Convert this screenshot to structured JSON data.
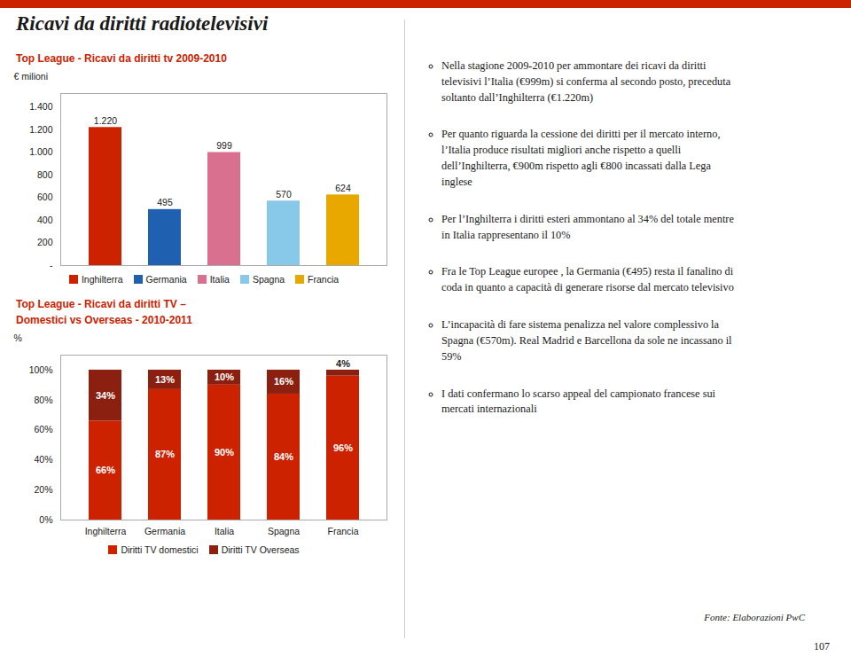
{
  "title": "Ricavi da diritti radiotelevisivi",
  "chart_data": [
    {
      "type": "bar",
      "title": "Top League - Ricavi da diritti tv 2009-2010",
      "categories": [
        "Inghilterra",
        "Germania",
        "Italia",
        "Spagna",
        "Francia"
      ],
      "values": [
        1220,
        495,
        999,
        570,
        624
      ],
      "value_labels": [
        "1.220",
        "495",
        "999",
        "570",
        "624"
      ],
      "colors": [
        "#cc2200",
        "#2060b0",
        "#d97090",
        "#88c8e8",
        "#e8a800"
      ],
      "ylabel": "€ milioni",
      "ylim": [
        0,
        1520
      ],
      "yticks": [
        {
          "value": 0,
          "label": "-"
        },
        200,
        400,
        600,
        800,
        {
          "value": 1000,
          "label": "1.000"
        },
        {
          "value": 1200,
          "label": "1.200"
        },
        {
          "value": 1400,
          "label": "1.400"
        }
      ],
      "data_labels": true,
      "tick_labels": "y",
      "legend": "bottom",
      "grid": false
    },
    {
      "type": "bar",
      "title": "Top League - Ricavi da diritti TV –\nDomestici vs Overseas - 2010-2011",
      "categories": [
        "Inghilterra",
        "Germania",
        "Italia",
        "Spagna",
        "Francia"
      ],
      "series": [
        {
          "name": "Diritti TV domestici",
          "color": "#cc2200",
          "values": [
            66,
            87,
            90,
            84,
            96
          ],
          "value_labels": [
            "66%",
            "87%",
            "90%",
            "84%",
            "96%"
          ]
        },
        {
          "name": "Diritti TV Overseas",
          "color": "#8b2010",
          "values": [
            34,
            13,
            10,
            16,
            4
          ],
          "value_labels": [
            "34%",
            "13%",
            "10%",
            "16%",
            "4%"
          ]
        }
      ],
      "stacked": true,
      "ylabel": "%",
      "ylim": [
        0,
        110
      ],
      "yticks": [
        {
          "value": 0,
          "label": "0%"
        },
        {
          "value": 20,
          "label": "20%"
        },
        {
          "value": 40,
          "label": "40%"
        },
        {
          "value": 60,
          "label": "60%"
        },
        {
          "value": 80,
          "label": "80%"
        },
        {
          "value": 100,
          "label": "100%"
        }
      ],
      "data_labels": true,
      "legend": "bottom",
      "grid": false
    }
  ],
  "annotations": [
    "Nella stagione 2009-2010 per ammontare dei ricavi da diritti\ntelevisivi l’Italia (€999m)  si conferma al secondo posto, preceduta\nsoltanto dall’Inghilterra (€1.220m)",
    "Per quanto riguarda la cessione dei diritti per il mercato interno,\nl’Italia produce risultati migliori anche rispetto a quelli\ndell’Inghilterra, €900m rispetto agli €800 incassati dalla Lega\ninglese",
    "Per l’Inghilterra i diritti esteri ammontano al 34% del totale mentre\nin Italia rappresentano il 10%",
    "Fra le Top League europee , la Germania (€495) resta il fanalino di\ncoda in quanto a capacità di generare risorse dal mercato televisivo",
    "L’incapacità di fare sistema penalizza nel valore complessivo la\nSpagna (€570m). Real Madrid e Barcellona da sole ne incassano il\n59%",
    "I dati confermano lo scarso appeal del campionato francese sui\nmercati internazionali"
  ],
  "caption": "Fonte: Elaborazioni PwC",
  "page_number": "107"
}
